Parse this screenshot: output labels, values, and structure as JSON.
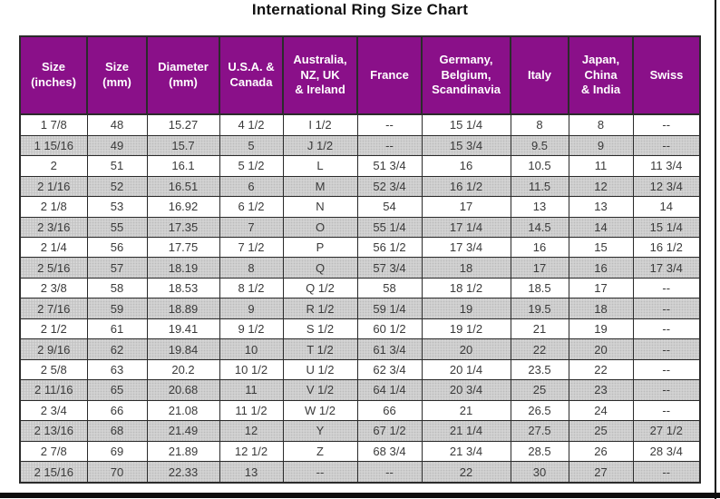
{
  "colors": {
    "header_bg": "#8a1089",
    "header_text": "#ffffff",
    "cell_text": "#3a3a3a",
    "grid_line": "#2b2b2b",
    "row_alt_bg": "#cbcbcb",
    "frame_line": "#0d0d0d",
    "title_color": "#111111"
  },
  "chart_data": {
    "type": "table",
    "title": "International Ring Size Chart",
    "columns": [
      "Size\n(inches)",
      "Size\n(mm)",
      "Diameter\n(mm)",
      "U.S.A. &\nCanada",
      "Australia,\nNZ, UK\n& Ireland",
      "France",
      "Germany,\nBelgium,\nScandinavia",
      "Italy",
      "Japan,\nChina\n& India",
      "Swiss"
    ],
    "rows": [
      [
        "1 7/8",
        "48",
        "15.27",
        "4 1/2",
        "I 1/2",
        "--",
        "15 1/4",
        "8",
        "8",
        "--"
      ],
      [
        "1 15/16",
        "49",
        "15.7",
        "5",
        "J 1/2",
        "--",
        "15 3/4",
        "9.5",
        "9",
        "--"
      ],
      [
        "2",
        "51",
        "16.1",
        "5 1/2",
        "L",
        "51 3/4",
        "16",
        "10.5",
        "11",
        "11 3/4"
      ],
      [
        "2 1/16",
        "52",
        "16.51",
        "6",
        "M",
        "52 3/4",
        "16 1/2",
        "11.5",
        "12",
        "12 3/4"
      ],
      [
        "2 1/8",
        "53",
        "16.92",
        "6 1/2",
        "N",
        "54",
        "17",
        "13",
        "13",
        "14"
      ],
      [
        "2 3/16",
        "55",
        "17.35",
        "7",
        "O",
        "55 1/4",
        "17 1/4",
        "14.5",
        "14",
        "15 1/4"
      ],
      [
        "2 1/4",
        "56",
        "17.75",
        "7 1/2",
        "P",
        "56 1/2",
        "17 3/4",
        "16",
        "15",
        "16 1/2"
      ],
      [
        "2 5/16",
        "57",
        "18.19",
        "8",
        "Q",
        "57 3/4",
        "18",
        "17",
        "16",
        "17 3/4"
      ],
      [
        "2 3/8",
        "58",
        "18.53",
        "8 1/2",
        "Q 1/2",
        "58",
        "18 1/2",
        "18.5",
        "17",
        "--"
      ],
      [
        "2 7/16",
        "59",
        "18.89",
        "9",
        "R 1/2",
        "59 1/4",
        "19",
        "19.5",
        "18",
        "--"
      ],
      [
        "2 1/2",
        "61",
        "19.41",
        "9 1/2",
        "S 1/2",
        "60 1/2",
        "19 1/2",
        "21",
        "19",
        "--"
      ],
      [
        "2 9/16",
        "62",
        "19.84",
        "10",
        "T 1/2",
        "61 3/4",
        "20",
        "22",
        "20",
        "--"
      ],
      [
        "2 5/8",
        "63",
        "20.2",
        "10 1/2",
        "U 1/2",
        "62 3/4",
        "20 1/4",
        "23.5",
        "22",
        "--"
      ],
      [
        "2 11/16",
        "65",
        "20.68",
        "11",
        "V 1/2",
        "64 1/4",
        "20 3/4",
        "25",
        "23",
        "--"
      ],
      [
        "2 3/4",
        "66",
        "21.08",
        "11 1/2",
        "W 1/2",
        "66",
        "21",
        "26.5",
        "24",
        "--"
      ],
      [
        "2 13/16",
        "68",
        "21.49",
        "12",
        "Y",
        "67 1/2",
        "21 1/4",
        "27.5",
        "25",
        "27 1/2"
      ],
      [
        "2 7/8",
        "69",
        "21.89",
        "12 1/2",
        "Z",
        "68 3/4",
        "21 3/4",
        "28.5",
        "26",
        "28 3/4"
      ],
      [
        "2 15/16",
        "70",
        "22.33",
        "13",
        "--",
        "--",
        "22",
        "30",
        "27",
        "--"
      ]
    ]
  }
}
